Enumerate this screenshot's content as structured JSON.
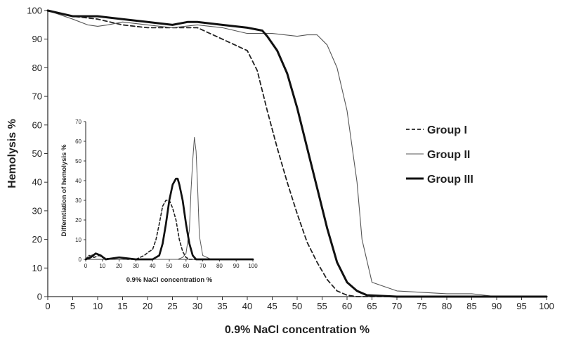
{
  "chart_data": [
    {
      "type": "line",
      "title": "",
      "xlabel": "0.9% NaCl concentration %",
      "ylabel": "Hemolysis %",
      "xlim": [
        0,
        100
      ],
      "ylim": [
        0,
        100
      ],
      "xticks": [
        0,
        5,
        10,
        15,
        20,
        25,
        30,
        35,
        40,
        45,
        50,
        55,
        60,
        65,
        70,
        75,
        80,
        85,
        90,
        95,
        100
      ],
      "yticks": [
        0,
        10,
        20,
        30,
        40,
        50,
        60,
        70,
        80,
        90,
        100
      ],
      "grid": false,
      "legend_position": "right",
      "series": [
        {
          "name": "Group I",
          "style": "dashed",
          "color": "#222222",
          "x": [
            0,
            5,
            10,
            15,
            20,
            25,
            30,
            35,
            40,
            42,
            44,
            46,
            48,
            50,
            52,
            54,
            56,
            58,
            60,
            62,
            64,
            70,
            80,
            90,
            100
          ],
          "y": [
            100,
            98,
            97,
            95,
            94,
            94,
            94,
            90,
            86,
            79,
            65,
            52,
            40,
            29,
            19,
            12,
            6,
            2,
            0.5,
            0,
            0,
            0,
            0,
            0,
            0
          ]
        },
        {
          "name": "Group II",
          "style": "thin",
          "color": "#555555",
          "x": [
            0,
            5,
            8,
            10,
            12,
            15,
            20,
            25,
            30,
            35,
            40,
            45,
            50,
            52,
            54,
            56,
            58,
            60,
            62,
            63,
            65,
            70,
            75,
            80,
            85,
            90,
            95,
            100
          ],
          "y": [
            100,
            97,
            95,
            94.5,
            95,
            96,
            95,
            94,
            95,
            94,
            92,
            92,
            91,
            91.5,
            91.5,
            88,
            80,
            65,
            40,
            20,
            5,
            2,
            1.5,
            1,
            1,
            0,
            0,
            0
          ]
        },
        {
          "name": "Group III",
          "style": "thick",
          "color": "#111111",
          "x": [
            0,
            5,
            10,
            15,
            20,
            25,
            28,
            30,
            35,
            40,
            43,
            44,
            46,
            48,
            50,
            52,
            54,
            56,
            58,
            60,
            62,
            64,
            70,
            80,
            90,
            100
          ],
          "y": [
            100,
            98,
            98,
            97,
            96,
            95,
            96,
            96,
            95,
            94,
            93,
            91,
            86,
            78,
            66,
            52,
            38,
            24,
            12,
            5,
            2,
            0.5,
            0,
            0,
            0,
            0
          ]
        }
      ]
    },
    {
      "type": "line",
      "title": "",
      "xlabel": "0.9% NaCl concentration %",
      "ylabel": "Differntiation of hemolysis %",
      "xlim": [
        0,
        100
      ],
      "ylim": [
        0,
        70
      ],
      "xticks": [
        0,
        10,
        20,
        30,
        40,
        50,
        60,
        70,
        80,
        90,
        100
      ],
      "yticks": [
        0,
        10,
        20,
        30,
        40,
        50,
        60,
        70
      ],
      "grid": false,
      "series": [
        {
          "style": "dashed",
          "color": "#222222",
          "x": [
            0,
            2,
            5,
            8,
            10,
            15,
            20,
            25,
            30,
            35,
            38,
            40,
            42,
            44,
            46,
            48,
            50,
            52,
            54,
            56,
            58,
            60,
            62,
            64,
            70,
            80,
            90,
            100
          ],
          "y": [
            0,
            2,
            1,
            2,
            1,
            0,
            1,
            0,
            0,
            2,
            4,
            5,
            10,
            18,
            27,
            30,
            30,
            26,
            20,
            10,
            4,
            1,
            0,
            0,
            0,
            0,
            0,
            0
          ]
        },
        {
          "style": "thin",
          "color": "#555555",
          "x": [
            0,
            3,
            6,
            9,
            12,
            20,
            30,
            40,
            50,
            55,
            58,
            60,
            62,
            63,
            64,
            65,
            66,
            67,
            68,
            70,
            75,
            80,
            85,
            90,
            100
          ],
          "y": [
            0,
            2,
            3,
            2,
            0,
            1,
            0,
            0,
            0,
            0,
            1,
            3,
            15,
            35,
            50,
            62,
            55,
            35,
            12,
            2,
            0,
            0,
            0,
            0,
            0
          ],
          "peak_label": ""
        },
        {
          "style": "thick",
          "color": "#111111",
          "x": [
            0,
            3,
            6,
            9,
            12,
            20,
            30,
            40,
            44,
            46,
            48,
            50,
            52,
            54,
            55,
            56,
            58,
            60,
            62,
            64,
            66,
            70,
            80,
            90,
            100
          ],
          "y": [
            0,
            1,
            3,
            2,
            0,
            1,
            0,
            0,
            2,
            8,
            18,
            30,
            38,
            41,
            41,
            38,
            30,
            18,
            8,
            2,
            0,
            0,
            0,
            0,
            0
          ]
        }
      ]
    }
  ]
}
